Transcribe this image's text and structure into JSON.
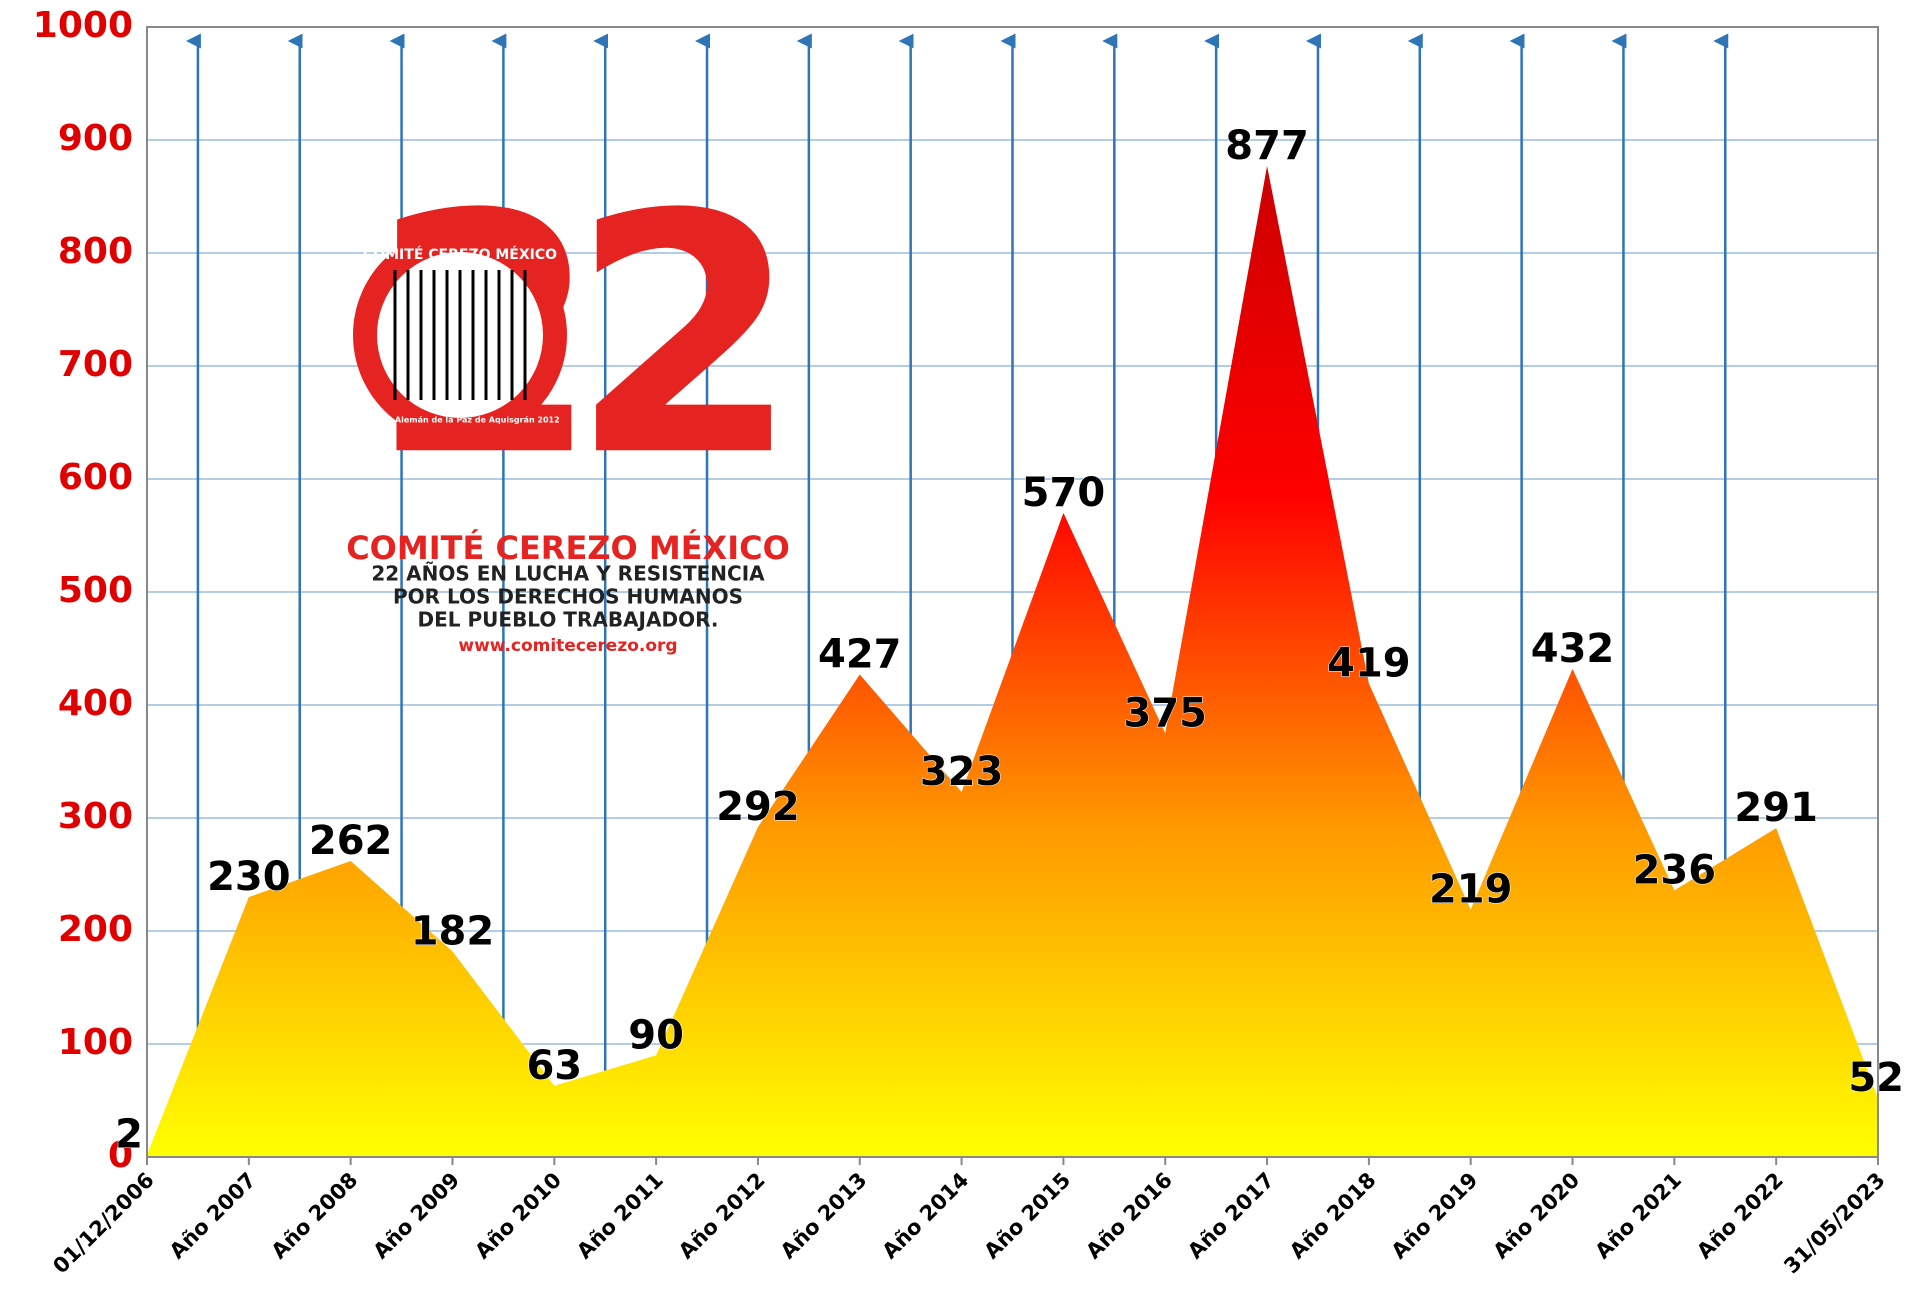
{
  "chart_data": {
    "type": "area",
    "categories": [
      "01/12/2006",
      "Año 2007",
      "Año 2008",
      "Año 2009",
      "Año 2010",
      "Año 2011",
      "Año 2012",
      "Año 2013",
      "Año 2014",
      "Año 2015",
      "Año 2016",
      "Año 2017",
      "Año 2018",
      "Año 2019",
      "Año 2020",
      "Año 2021",
      "Año 2022",
      "31/05/2023"
    ],
    "values": [
      2,
      230,
      262,
      182,
      63,
      90,
      292,
      427,
      323,
      570,
      375,
      877,
      419,
      219,
      432,
      236,
      291,
      52
    ],
    "colors": [
      "#ffff00",
      "#ff9900",
      "#ff0000",
      "#cc0000"
    ],
    "ylim": [
      0,
      1000
    ],
    "yticks": [
      0,
      100,
      200,
      300,
      400,
      500,
      600,
      700,
      800,
      900,
      1000
    ],
    "grid": true,
    "logo": {
      "number": "22",
      "ring": "COMITÉ CEREZO MÉXICO",
      "ring_sub": "Premio Alemán de la Paz de Aquisgrán 2012",
      "lines": [
        "COMITÉ CEREZO MÉXICO",
        "22 AÑOS EN LUCHA Y RESISTENCIA",
        "POR LOS DERECHOS HUMANOS",
        "DEL PUEBLO TRABAJADOR.",
        "www.comitecerezo.org"
      ]
    }
  }
}
